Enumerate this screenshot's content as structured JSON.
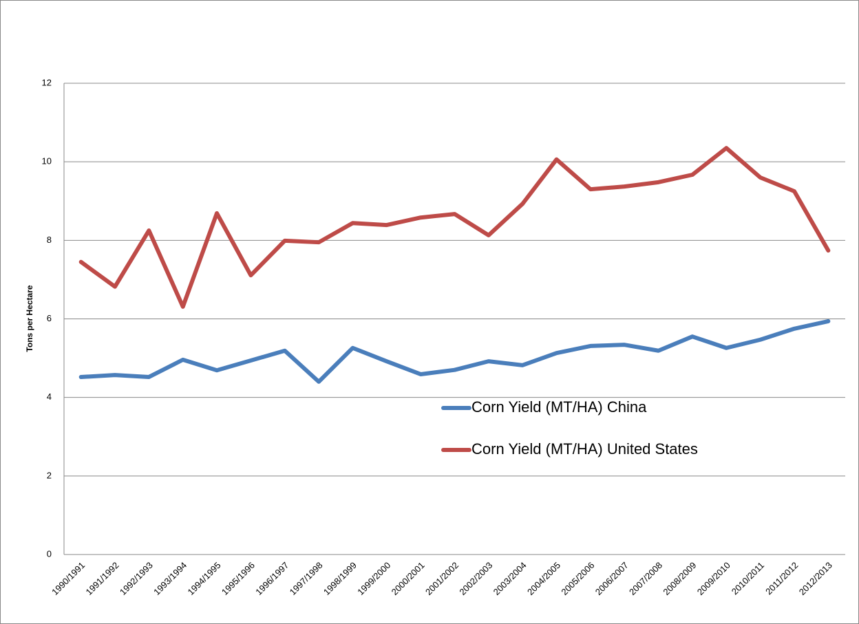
{
  "chart_data": {
    "type": "line",
    "y_label": "Tons per Hectare",
    "categories": [
      "1990/1991",
      "1991/1992",
      "1992/1993",
      "1993/1994",
      "1994/1995",
      "1995/1996",
      "1996/1997",
      "1997/1998",
      "1998/1999",
      "1999/2000",
      "2000/2001",
      "2001/2002",
      "2002/2003",
      "2003/2004",
      "2004/2005",
      "2005/2006",
      "2006/2007",
      "2007/2008",
      "2008/2009",
      "2009/2010",
      "2010/2011",
      "2011/2012",
      "2012/2013"
    ],
    "series": [
      {
        "name": "Corn Yield (MT/HA) China",
        "color": "#4a7ebb",
        "values": [
          4.52,
          4.57,
          4.52,
          4.96,
          4.69,
          4.94,
          5.19,
          4.4,
          5.26,
          4.92,
          4.59,
          4.7,
          4.92,
          4.82,
          5.13,
          5.31,
          5.34,
          5.19,
          5.55,
          5.26,
          5.47,
          5.75,
          5.94
        ]
      },
      {
        "name": "Corn Yield (MT/HA) United States",
        "color": "#be4b48",
        "values": [
          7.45,
          6.82,
          8.25,
          6.31,
          8.69,
          7.11,
          7.99,
          7.95,
          8.44,
          8.39,
          8.58,
          8.67,
          8.13,
          8.93,
          10.06,
          9.3,
          9.37,
          9.48,
          9.67,
          10.35,
          9.6,
          9.25,
          7.74
        ]
      }
    ],
    "ylim": [
      0,
      12
    ],
    "yticks": [
      0,
      2,
      4,
      6,
      8,
      10,
      12
    ],
    "grid": true
  }
}
